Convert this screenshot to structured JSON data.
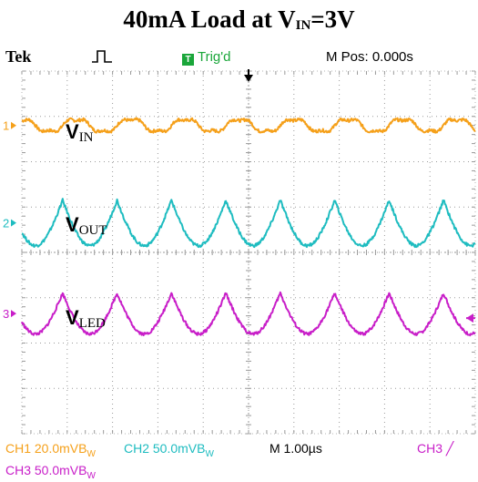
{
  "title": {
    "main": "40mA Load at V",
    "sub": "IN",
    "suffix": "=3V"
  },
  "header": {
    "brand": "Tek",
    "trigger_badge": "T",
    "trigger_status": "Trig'd",
    "position": "M Pos: 0.000s"
  },
  "footer": {
    "ch1": "CH1  20.0mVB",
    "ch1_sub": "W",
    "ch2": "CH2  50.0mVB",
    "ch2_sub": "W",
    "timebase": "M 1.00µs",
    "trigger_source": "CH3",
    "ch3": "CH3  50.0mVB",
    "ch3_sub": "W"
  },
  "colors": {
    "ch1": "#f5a01a",
    "ch2": "#1ebcc0",
    "ch3": "#c81ec8",
    "grid": "#9a9a9a",
    "trigger": "#1aa63a"
  },
  "chart_data": {
    "type": "line",
    "title": "40mA Load at VIN=3V",
    "x_unit": "µs/div",
    "xlim": [
      -5,
      5
    ],
    "ylim": [
      -4,
      4
    ],
    "grid": true,
    "series": [
      {
        "name": "V",
        "sub": "IN",
        "channel": "1",
        "offset_div": 2.8,
        "amplitude_div": 0.18,
        "period_div": 1.2,
        "shape": "ripple"
      },
      {
        "name": "V",
        "sub": "OUT",
        "channel": "2",
        "offset_div": 0.65,
        "amplitude_div": 0.5,
        "period_div": 1.2,
        "shape": "scallop"
      },
      {
        "name": "V",
        "sub": "LED",
        "channel": "3",
        "offset_div": -1.35,
        "amplitude_div": 0.45,
        "period_div": 1.2,
        "shape": "scallop"
      }
    ]
  }
}
